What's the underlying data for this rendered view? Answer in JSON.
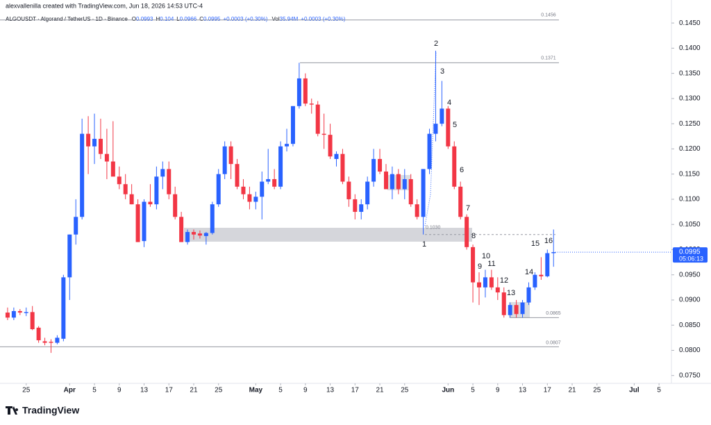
{
  "chart_data": {
    "type": "candlestick",
    "credit": "alexvallenilla created with TradingView.com, Jun 18, 2026 14:53 UTC-4",
    "symbol": "ALGOUSDT · Algorand / TetherUS · 1D · Binance",
    "ohlc_labels": {
      "o": "O",
      "h": "H",
      "l": "L",
      "c": "C"
    },
    "change": "+0.0003 (+0.30%)",
    "volume_label": "Vol",
    "volume": "35.94M",
    "countdown": "05:06:13",
    "brand": "TradingView",
    "up_color": "#2962ff",
    "down_color": "#f23645",
    "x": [
      "2026-03-22",
      "2026-03-23",
      "2026-03-24",
      "2026-03-25",
      "2026-03-26",
      "2026-03-27",
      "2026-03-28",
      "2026-03-29",
      "2026-03-30",
      "2026-03-31",
      "2026-04-01",
      "2026-04-02",
      "2026-04-03",
      "2026-04-04",
      "2026-04-05",
      "2026-04-06",
      "2026-04-07",
      "2026-04-08",
      "2026-04-09",
      "2026-04-10",
      "2026-04-11",
      "2026-04-12",
      "2026-04-13",
      "2026-04-14",
      "2026-04-15",
      "2026-04-16",
      "2026-04-17",
      "2026-04-18",
      "2026-04-19",
      "2026-04-20",
      "2026-04-21",
      "2026-04-22",
      "2026-04-23",
      "2026-04-24",
      "2026-04-25",
      "2026-04-26",
      "2026-04-27",
      "2026-04-28",
      "2026-04-29",
      "2026-04-30",
      "2026-05-01",
      "2026-05-02",
      "2026-05-03",
      "2026-05-04",
      "2026-05-05",
      "2026-05-06",
      "2026-05-07",
      "2026-05-08",
      "2026-05-09",
      "2026-05-10",
      "2026-05-11",
      "2026-05-12",
      "2026-05-13",
      "2026-05-14",
      "2026-05-15",
      "2026-05-16",
      "2026-05-17",
      "2026-05-18",
      "2026-05-19",
      "2026-05-20",
      "2026-05-21",
      "2026-05-22",
      "2026-05-23",
      "2026-05-24",
      "2026-05-25",
      "2026-05-26",
      "2026-05-27",
      "2026-05-28",
      "2026-05-29",
      "2026-05-30",
      "2026-05-31",
      "2026-06-01",
      "2026-06-02",
      "2026-06-03",
      "2026-06-04",
      "2026-06-05",
      "2026-06-06",
      "2026-06-07",
      "2026-06-08",
      "2026-06-09",
      "2026-06-10",
      "2026-06-11",
      "2026-06-12",
      "2026-06-13",
      "2026-06-14",
      "2026-06-15",
      "2026-06-16",
      "2026-06-17",
      "2026-06-18"
    ],
    "open": [
      0.0875,
      0.0865,
      0.0878,
      0.0874,
      0.0876,
      0.0845,
      0.0818,
      0.0817,
      0.0815,
      0.0823,
      0.0945,
      0.103,
      0.1065,
      0.123,
      0.1205,
      0.122,
      0.119,
      0.1175,
      0.1145,
      0.113,
      0.111,
      0.109,
      0.1017,
      0.1095,
      0.109,
      0.1145,
      0.116,
      0.111,
      0.1065,
      0.1015,
      0.1035,
      0.1032,
      0.1027,
      0.1033,
      0.109,
      0.115,
      0.1205,
      0.117,
      0.1125,
      0.111,
      0.1095,
      0.1105,
      0.1135,
      0.114,
      0.1125,
      0.1205,
      0.121,
      0.1285,
      0.134,
      0.129,
      0.1288,
      0.123,
      0.1228,
      0.118,
      0.119,
      0.1135,
      0.11,
      0.1075,
      0.109,
      0.1135,
      0.118,
      0.1155,
      0.112,
      0.115,
      0.112,
      0.114,
      0.109,
      0.1065,
      0.116,
      0.123,
      0.125,
      0.128,
      0.1205,
      0.1125,
      0.1065,
      0.1005,
      0.0935,
      0.0925,
      0.0945,
      0.0925,
      0.0915,
      0.087,
      0.089,
      0.0872,
      0.0895,
      0.0925,
      0.095,
      0.0947,
      0.0993
    ],
    "high": [
      0.0885,
      0.0885,
      0.0882,
      0.0885,
      0.0888,
      0.0848,
      0.0825,
      0.0822,
      0.083,
      0.095,
      0.103,
      0.11,
      0.126,
      0.1265,
      0.127,
      0.126,
      0.124,
      0.1255,
      0.1165,
      0.115,
      0.113,
      0.11,
      0.11,
      0.113,
      0.1165,
      0.1175,
      0.1175,
      0.1125,
      0.1075,
      0.104,
      0.104,
      0.1038,
      0.1035,
      0.1095,
      0.116,
      0.1215,
      0.1215,
      0.118,
      0.114,
      0.1125,
      0.1115,
      0.1155,
      0.12,
      0.116,
      0.1215,
      0.124,
      0.1285,
      0.1371,
      0.135,
      0.13,
      0.1295,
      0.127,
      0.125,
      0.1195,
      0.12,
      0.1145,
      0.111,
      0.11,
      0.1145,
      0.12,
      0.12,
      0.117,
      0.1165,
      0.116,
      0.116,
      0.115,
      0.11,
      0.116,
      0.124,
      0.1395,
      0.1335,
      0.1285,
      0.1215,
      0.1135,
      0.107,
      0.101,
      0.0955,
      0.096,
      0.096,
      0.0945,
      0.0925,
      0.0895,
      0.09,
      0.09,
      0.0935,
      0.0955,
      0.0985,
      0.1,
      0.104
    ],
    "low": [
      0.086,
      0.086,
      0.087,
      0.0868,
      0.084,
      0.0815,
      0.081,
      0.0795,
      0.0812,
      0.0818,
      0.09,
      0.101,
      0.106,
      0.115,
      0.117,
      0.118,
      0.114,
      0.115,
      0.112,
      0.11,
      0.109,
      0.1015,
      0.1005,
      0.1085,
      0.108,
      0.112,
      0.11,
      0.106,
      0.1015,
      0.101,
      0.102,
      0.1022,
      0.101,
      0.103,
      0.1085,
      0.114,
      0.114,
      0.112,
      0.11,
      0.108,
      0.108,
      0.106,
      0.113,
      0.112,
      0.112,
      0.1195,
      0.1205,
      0.128,
      0.1285,
      0.127,
      0.1225,
      0.12,
      0.118,
      0.1165,
      0.113,
      0.1085,
      0.106,
      0.106,
      0.108,
      0.1125,
      0.115,
      0.112,
      0.11,
      0.111,
      0.11,
      0.1085,
      0.106,
      0.103,
      0.115,
      0.1215,
      0.1245,
      0.12,
      0.112,
      0.106,
      0.1,
      0.0895,
      0.089,
      0.0905,
      0.092,
      0.09,
      0.0865,
      0.0865,
      0.0865,
      0.0865,
      0.089,
      0.092,
      0.094,
      0.0945,
      0.0966
    ],
    "close": [
      0.0865,
      0.0878,
      0.0875,
      0.0876,
      0.0842,
      0.082,
      0.0815,
      0.0815,
      0.0825,
      0.0945,
      0.103,
      0.1065,
      0.123,
      0.1205,
      0.122,
      0.119,
      0.1175,
      0.1145,
      0.113,
      0.111,
      0.109,
      0.1015,
      0.1095,
      0.109,
      0.1145,
      0.116,
      0.111,
      0.1065,
      0.1015,
      0.1035,
      0.103,
      0.1028,
      0.1033,
      0.109,
      0.115,
      0.1205,
      0.117,
      0.1125,
      0.111,
      0.1095,
      0.1105,
      0.1135,
      0.114,
      0.1125,
      0.1205,
      0.121,
      0.1285,
      0.134,
      0.129,
      0.1288,
      0.123,
      0.1228,
      0.1185,
      0.119,
      0.1135,
      0.11,
      0.1075,
      0.109,
      0.1135,
      0.118,
      0.1155,
      0.112,
      0.115,
      0.112,
      0.114,
      0.109,
      0.1065,
      0.116,
      0.123,
      0.125,
      0.128,
      0.1205,
      0.1125,
      0.1065,
      0.1005,
      0.0935,
      0.0925,
      0.0945,
      0.0925,
      0.0915,
      0.087,
      0.089,
      0.0872,
      0.0895,
      0.0925,
      0.095,
      0.0947,
      0.0993,
      0.0995
    ],
    "xlim": [
      "2026-03-21",
      "2026-07-07"
    ],
    "xticks": [
      {
        "value": "2026-03-25",
        "label": "25"
      },
      {
        "value": "2026-04-01",
        "label": "Apr"
      },
      {
        "value": "2026-04-05",
        "label": "5"
      },
      {
        "value": "2026-04-09",
        "label": "9"
      },
      {
        "value": "2026-04-13",
        "label": "13"
      },
      {
        "value": "2026-04-17",
        "label": "17"
      },
      {
        "value": "2026-04-21",
        "label": "21"
      },
      {
        "value": "2026-04-25",
        "label": "25"
      },
      {
        "value": "2026-05-01",
        "label": "May"
      },
      {
        "value": "2026-05-05",
        "label": "5"
      },
      {
        "value": "2026-05-09",
        "label": "9"
      },
      {
        "value": "2026-05-13",
        "label": "13"
      },
      {
        "value": "2026-05-17",
        "label": "17"
      },
      {
        "value": "2026-05-21",
        "label": "21"
      },
      {
        "value": "2026-05-25",
        "label": "25"
      },
      {
        "value": "2026-06-01",
        "label": "Jun"
      },
      {
        "value": "2026-06-05",
        "label": "5"
      },
      {
        "value": "2026-06-09",
        "label": "9"
      },
      {
        "value": "2026-06-13",
        "label": "13"
      },
      {
        "value": "2026-06-17",
        "label": "17"
      },
      {
        "value": "2026-06-21",
        "label": "21"
      },
      {
        "value": "2026-06-25",
        "label": "25"
      },
      {
        "value": "2026-07-01",
        "label": "Jul"
      },
      {
        "value": "2026-07-05",
        "label": "5"
      }
    ],
    "ylim": [
      0.074,
      0.1475
    ],
    "yticks": [
      {
        "value": 0.075,
        "label": "0.0750"
      },
      {
        "value": 0.08,
        "label": "0.0800"
      },
      {
        "value": 0.085,
        "label": "0.0850"
      },
      {
        "value": 0.09,
        "label": "0.0900"
      },
      {
        "value": 0.095,
        "label": "0.0950"
      },
      {
        "value": 0.1,
        "label": "0.1000"
      },
      {
        "value": 0.105,
        "label": "0.1050"
      },
      {
        "value": 0.11,
        "label": "0.1100"
      },
      {
        "value": 0.115,
        "label": "0.1150"
      },
      {
        "value": 0.12,
        "label": "0.1200"
      },
      {
        "value": 0.125,
        "label": "0.1250"
      },
      {
        "value": 0.13,
        "label": "0.1300"
      },
      {
        "value": 0.135,
        "label": "0.1350"
      },
      {
        "value": 0.14,
        "label": "0.1400"
      },
      {
        "value": 0.145,
        "label": "0.1450"
      }
    ],
    "levels": [
      {
        "value": 0.1456,
        "label": "0.1456"
      },
      {
        "value": 0.1371,
        "label": "0.1371"
      },
      {
        "value": 0.103,
        "label": "0.1030"
      },
      {
        "value": 0.0865,
        "label": "0.0865"
      },
      {
        "value": 0.0807,
        "label": "0.0807"
      }
    ],
    "annotations": [
      "1",
      "2",
      "3",
      "4",
      "5",
      "6",
      "7",
      "8",
      "9",
      "10",
      "11",
      "12",
      "13",
      "14",
      "15",
      "16"
    ]
  }
}
